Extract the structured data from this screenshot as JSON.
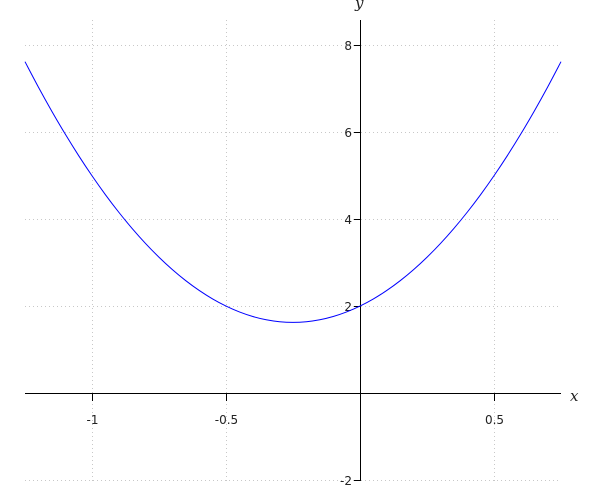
{
  "chart_data": {
    "type": "line",
    "title": "",
    "xlabel": "x",
    "ylabel": "y",
    "xlim": [
      -1.25,
      0.75
    ],
    "ylim": [
      -2,
      8.6
    ],
    "grid": true,
    "x_ticks": [
      {
        "value": -1,
        "label": "-1"
      },
      {
        "value": -0.5,
        "label": "-0.5"
      },
      {
        "value": 0.5,
        "label": "0.5"
      }
    ],
    "y_ticks": [
      {
        "value": -2,
        "label": "-2"
      },
      {
        "value": 2,
        "label": "2"
      },
      {
        "value": 4,
        "label": "4"
      },
      {
        "value": 6,
        "label": "6"
      },
      {
        "value": 8,
        "label": "8"
      }
    ],
    "series": [
      {
        "color": "#0000ff",
        "x": [
          -1.25,
          -1.2,
          -1.15,
          -1.1,
          -1.05,
          -1.0,
          -0.95,
          -0.9,
          -0.85,
          -0.8,
          -0.75,
          -0.7,
          -0.65,
          -0.6,
          -0.55,
          -0.5,
          -0.45,
          -0.4,
          -0.35,
          -0.3,
          -0.25,
          -0.2,
          -0.15,
          -0.1,
          -0.05,
          0,
          0.05,
          0.1,
          0.15,
          0.2,
          0.25,
          0.3,
          0.35,
          0.4,
          0.45,
          0.5,
          0.55,
          0.6,
          0.65,
          0.7,
          0.75
        ],
        "y": [
          7.625,
          7.04,
          6.485,
          5.96,
          5.465,
          5,
          4.565,
          4.16,
          3.785,
          3.44,
          3.125,
          2.84,
          2.585,
          2.36,
          2.165,
          2,
          1.865,
          1.76,
          1.685,
          1.64,
          1.625,
          1.64,
          1.685,
          1.76,
          1.865,
          2,
          2.165,
          2.36,
          2.585,
          2.84,
          3.125,
          3.44,
          3.785,
          4.16,
          4.565,
          5,
          5.465,
          5.96,
          6.485,
          7.04,
          7.625
        ]
      }
    ]
  }
}
